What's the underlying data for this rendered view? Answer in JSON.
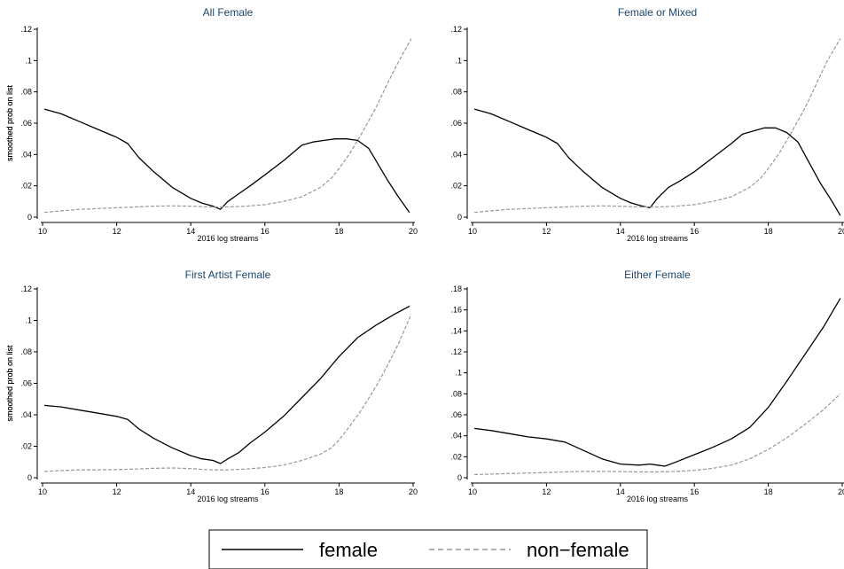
{
  "legend": {
    "female": "female",
    "nonfemale": "non−female"
  },
  "chart_data": [
    {
      "type": "line",
      "title": "All Female",
      "xlabel": "2016 log streams",
      "ylabel": "smoothed prob on list",
      "xlim": [
        10,
        20
      ],
      "ylim": [
        0,
        0.12
      ],
      "xticks": [
        10,
        12,
        14,
        16,
        18,
        20
      ],
      "xtick_labels": [
        "10",
        "12",
        "14",
        "16",
        "18",
        "20"
      ],
      "yticks": [
        0,
        0.02,
        0.04,
        0.06,
        0.08,
        0.1,
        0.12
      ],
      "ytick_labels": [
        "0",
        ".02",
        ".04",
        ".06",
        ".08",
        ".1",
        ".12"
      ],
      "series": [
        {
          "name": "female",
          "color": "#000000",
          "dashed": false,
          "x": [
            10.05,
            10.5,
            11,
            11.5,
            12,
            12.3,
            12.6,
            13,
            13.5,
            14,
            14.3,
            14.6,
            14.8,
            15,
            15.3,
            15.6,
            16,
            16.5,
            17,
            17.3,
            17.6,
            17.9,
            18.2,
            18.5,
            18.8,
            19,
            19.3,
            19.6,
            19.9
          ],
          "y": [
            0.069,
            0.066,
            0.061,
            0.056,
            0.051,
            0.047,
            0.038,
            0.029,
            0.019,
            0.012,
            0.009,
            0.007,
            0.005,
            0.01,
            0.015,
            0.02,
            0.027,
            0.036,
            0.046,
            0.048,
            0.049,
            0.05,
            0.05,
            0.049,
            0.044,
            0.036,
            0.024,
            0.013,
            0.003
          ]
        },
        {
          "name": "non−female",
          "color": "#999999",
          "dashed": true,
          "x": [
            10.05,
            10.5,
            11,
            11.5,
            12,
            12.5,
            13,
            13.5,
            14,
            14.5,
            15,
            15.5,
            16,
            16.5,
            17,
            17.5,
            17.8,
            18,
            18.3,
            18.6,
            19,
            19.3,
            19.6,
            19.95
          ],
          "y": [
            0.003,
            0.004,
            0.005,
            0.0055,
            0.006,
            0.0065,
            0.007,
            0.0072,
            0.007,
            0.0065,
            0.0065,
            0.007,
            0.008,
            0.01,
            0.013,
            0.019,
            0.025,
            0.031,
            0.041,
            0.053,
            0.07,
            0.085,
            0.099,
            0.114
          ]
        }
      ]
    },
    {
      "type": "line",
      "title": "Female or Mixed",
      "xlabel": "2016 log streams",
      "ylabel": "smoothed prob on list",
      "xlim": [
        10,
        20
      ],
      "ylim": [
        0,
        0.12
      ],
      "xticks": [
        10,
        12,
        14,
        16,
        18,
        20
      ],
      "xtick_labels": [
        "10",
        "12",
        "14",
        "16",
        "18",
        "20"
      ],
      "yticks": [
        0,
        0.02,
        0.04,
        0.06,
        0.08,
        0.1,
        0.12
      ],
      "ytick_labels": [
        "0",
        ".02",
        ".04",
        ".06",
        ".08",
        ".1",
        ".12"
      ],
      "series": [
        {
          "name": "female",
          "color": "#000000",
          "dashed": false,
          "x": [
            10.05,
            10.5,
            11,
            11.5,
            12,
            12.3,
            12.6,
            13,
            13.5,
            14,
            14.3,
            14.6,
            14.8,
            15,
            15.3,
            15.6,
            16,
            16.5,
            17,
            17.3,
            17.6,
            17.9,
            18.2,
            18.5,
            18.8,
            19.1,
            19.4,
            19.7,
            19.95
          ],
          "y": [
            0.069,
            0.066,
            0.061,
            0.056,
            0.051,
            0.047,
            0.038,
            0.029,
            0.019,
            0.012,
            0.009,
            0.007,
            0.006,
            0.012,
            0.019,
            0.023,
            0.029,
            0.038,
            0.047,
            0.053,
            0.055,
            0.057,
            0.057,
            0.054,
            0.048,
            0.035,
            0.022,
            0.011,
            0.001
          ]
        },
        {
          "name": "non−female",
          "color": "#999999",
          "dashed": true,
          "x": [
            10.05,
            10.5,
            11,
            11.5,
            12,
            12.5,
            13,
            13.5,
            14,
            14.5,
            15,
            15.5,
            16,
            16.5,
            17,
            17.5,
            17.8,
            18,
            18.3,
            18.6,
            19,
            19.3,
            19.6,
            19.95
          ],
          "y": [
            0.003,
            0.004,
            0.005,
            0.0055,
            0.006,
            0.0065,
            0.007,
            0.0072,
            0.007,
            0.0065,
            0.0065,
            0.007,
            0.008,
            0.01,
            0.013,
            0.019,
            0.025,
            0.031,
            0.041,
            0.053,
            0.07,
            0.085,
            0.1,
            0.114
          ]
        }
      ]
    },
    {
      "type": "line",
      "title": "First Artist Female",
      "xlabel": "2016 log streams",
      "ylabel": "smoothed prob on list",
      "xlim": [
        10,
        20
      ],
      "ylim": [
        0,
        0.12
      ],
      "xticks": [
        10,
        12,
        14,
        16,
        18,
        20
      ],
      "xtick_labels": [
        "10",
        "12",
        "14",
        "16",
        "18",
        "20"
      ],
      "yticks": [
        0,
        0.02,
        0.04,
        0.06,
        0.08,
        0.1,
        0.12
      ],
      "ytick_labels": [
        "0",
        ".02",
        ".04",
        ".06",
        ".08",
        ".1",
        ".12"
      ],
      "series": [
        {
          "name": "female",
          "color": "#000000",
          "dashed": false,
          "x": [
            10.05,
            10.5,
            11,
            11.5,
            12,
            12.3,
            12.6,
            13,
            13.5,
            14,
            14.3,
            14.6,
            14.8,
            15,
            15.3,
            15.6,
            16,
            16.5,
            17,
            17.5,
            18,
            18.5,
            19,
            19.5,
            19.9
          ],
          "y": [
            0.046,
            0.045,
            0.043,
            0.041,
            0.039,
            0.037,
            0.031,
            0.025,
            0.019,
            0.014,
            0.012,
            0.011,
            0.009,
            0.012,
            0.016,
            0.022,
            0.029,
            0.039,
            0.051,
            0.063,
            0.077,
            0.089,
            0.097,
            0.104,
            0.109
          ]
        },
        {
          "name": "non−female",
          "color": "#999999",
          "dashed": true,
          "x": [
            10.05,
            10.5,
            11,
            11.5,
            12,
            12.5,
            13,
            13.5,
            14,
            14.5,
            15,
            15.5,
            16,
            16.5,
            17,
            17.5,
            17.8,
            18,
            18.3,
            18.6,
            19,
            19.3,
            19.6,
            19.95
          ],
          "y": [
            0.004,
            0.0045,
            0.005,
            0.005,
            0.0052,
            0.0055,
            0.006,
            0.0062,
            0.0058,
            0.005,
            0.005,
            0.0055,
            0.0065,
            0.008,
            0.011,
            0.015,
            0.019,
            0.024,
            0.033,
            0.043,
            0.058,
            0.071,
            0.085,
            0.104
          ]
        }
      ]
    },
    {
      "type": "line",
      "title": "Either Female",
      "xlabel": "2016 log streams",
      "ylabel": "smoothed prob on list",
      "xlim": [
        10,
        20
      ],
      "ylim": [
        0,
        0.18
      ],
      "xticks": [
        10,
        12,
        14,
        16,
        18,
        20
      ],
      "xtick_labels": [
        "10",
        "12",
        "14",
        "16",
        "18",
        "20"
      ],
      "yticks": [
        0,
        0.02,
        0.04,
        0.06,
        0.08,
        0.1,
        0.12,
        0.14,
        0.16,
        0.18
      ],
      "ytick_labels": [
        "0",
        ".02",
        ".04",
        ".06",
        ".08",
        ".1",
        ".12",
        ".14",
        ".16",
        ".18"
      ],
      "series": [
        {
          "name": "female",
          "color": "#000000",
          "dashed": false,
          "x": [
            10.05,
            10.5,
            11,
            11.5,
            12,
            12.5,
            13,
            13.5,
            14,
            14.5,
            14.8,
            15,
            15.2,
            15.5,
            16,
            16.5,
            17,
            17.5,
            18,
            18.5,
            19,
            19.5,
            19.95
          ],
          "y": [
            0.047,
            0.045,
            0.042,
            0.039,
            0.037,
            0.034,
            0.026,
            0.018,
            0.013,
            0.012,
            0.013,
            0.012,
            0.011,
            0.015,
            0.022,
            0.029,
            0.037,
            0.048,
            0.067,
            0.092,
            0.118,
            0.144,
            0.171
          ]
        },
        {
          "name": "non−female",
          "color": "#999999",
          "dashed": true,
          "x": [
            10.05,
            10.5,
            11,
            11.5,
            12,
            12.5,
            13,
            13.5,
            14,
            14.5,
            15,
            15.5,
            16,
            16.5,
            17,
            17.5,
            18,
            18.5,
            19,
            19.5,
            19.95
          ],
          "y": [
            0.003,
            0.0035,
            0.004,
            0.0045,
            0.005,
            0.0055,
            0.006,
            0.006,
            0.0058,
            0.0055,
            0.0055,
            0.006,
            0.007,
            0.009,
            0.012,
            0.018,
            0.027,
            0.038,
            0.051,
            0.065,
            0.08
          ]
        }
      ]
    }
  ]
}
